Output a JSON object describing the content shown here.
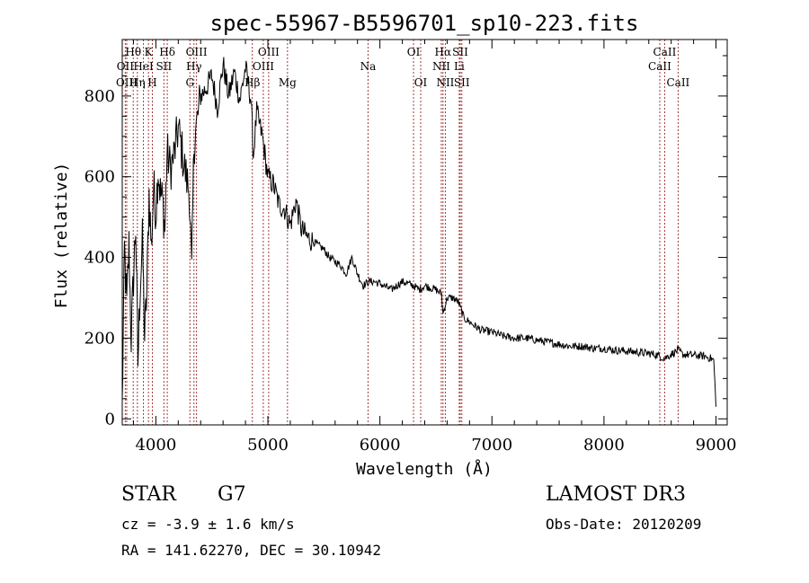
{
  "chart_data": {
    "type": "line",
    "title": "spec-55967-B5596701_sp10-223.fits",
    "xlabel": "Wavelength (Å)",
    "ylabel": "Flux (relative)",
    "xlim": [
      3700,
      9100
    ],
    "ylim": [
      -15,
      940
    ],
    "xticks": [
      4000,
      5000,
      6000,
      7000,
      8000,
      9000
    ],
    "yticks": [
      0,
      200,
      400,
      600,
      800
    ],
    "grid": false,
    "series": [
      {
        "values_x": [
          3700,
          3720,
          3740,
          3760,
          3780,
          3800,
          3820,
          3840,
          3860,
          3880,
          3900,
          3920,
          3940,
          3960,
          3980,
          4000,
          4020,
          4040,
          4060,
          4080,
          4100,
          4130,
          4160,
          4200,
          4240,
          4270,
          4300,
          4320,
          4340,
          4360,
          4400,
          4450,
          4500,
          4550,
          4600,
          4650,
          4700,
          4750,
          4800,
          4850,
          4870,
          4900,
          4950,
          5000,
          5050,
          5100,
          5150,
          5200,
          5250,
          5300,
          5350,
          5400,
          5450,
          5500,
          5550,
          5600,
          5650,
          5700,
          5750,
          5800,
          5850,
          5900,
          5950,
          6000,
          6100,
          6200,
          6300,
          6350,
          6400,
          6450,
          6500,
          6550,
          6563,
          6600,
          6650,
          6700,
          6750,
          6800,
          6850,
          6900,
          7000,
          7100,
          7200,
          7300,
          7400,
          7500,
          7600,
          7700,
          7800,
          7900,
          8000,
          8100,
          8200,
          8300,
          8400,
          8450,
          8500,
          8542,
          8600,
          8662,
          8700,
          8800,
          8900,
          8950,
          8980,
          9000
        ],
        "values_y": [
          30,
          420,
          280,
          430,
          200,
          350,
          480,
          140,
          330,
          440,
          200,
          320,
          560,
          420,
          580,
          510,
          620,
          560,
          540,
          470,
          660,
          620,
          650,
          720,
          650,
          600,
          560,
          360,
          680,
          720,
          800,
          820,
          850,
          770,
          880,
          800,
          860,
          790,
          870,
          790,
          650,
          760,
          700,
          600,
          580,
          530,
          520,
          480,
          540,
          470,
          450,
          440,
          430,
          420,
          400,
          390,
          380,
          360,
          400,
          360,
          330,
          340,
          340,
          335,
          320,
          340,
          330,
          320,
          330,
          325,
          320,
          310,
          260,
          300,
          300,
          290,
          250,
          240,
          230,
          220,
          215,
          205,
          200,
          200,
          195,
          190,
          185,
          180,
          180,
          175,
          175,
          170,
          168,
          165,
          162,
          160,
          155,
          150,
          160,
          170,
          160,
          158,
          155,
          150,
          145,
          30
        ],
        "noise_amplitude": 10
      }
    ],
    "lines": [
      {
        "label": "Hθ",
        "x": 3798,
        "row": 1
      },
      {
        "label": "OII",
        "x": 3727,
        "row": 2
      },
      {
        "label": "OIII",
        "x": 3740,
        "row": 3
      },
      {
        "label": "K",
        "x": 3934,
        "row": 1
      },
      {
        "label": "HeI",
        "x": 3889,
        "row": 2
      },
      {
        "label": "Hη",
        "x": 3835,
        "row": 3
      },
      {
        "label": "H",
        "x": 3969,
        "row": 3
      },
      {
        "label": "Hδ",
        "x": 4102,
        "row": 1
      },
      {
        "label": "SII",
        "x": 4072,
        "row": 2
      },
      {
        "label": "OIII",
        "x": 4363,
        "row": 1
      },
      {
        "label": "Hγ",
        "x": 4340,
        "row": 2
      },
      {
        "label": "G",
        "x": 4304,
        "row": 3
      },
      {
        "label": "Hβ",
        "x": 4861,
        "row": 3
      },
      {
        "label": "OIII",
        "x": 5007,
        "row": 1
      },
      {
        "label": "OIII",
        "x": 4959,
        "row": 2
      },
      {
        "label": "Mg",
        "x": 5175,
        "row": 3
      },
      {
        "label": "Na",
        "x": 5894,
        "row": 2
      },
      {
        "label": "OI",
        "x": 6300,
        "row": 1
      },
      {
        "label": "OI",
        "x": 6364,
        "row": 3
      },
      {
        "label": "Hα",
        "x": 6563,
        "row": 1
      },
      {
        "label": "NII",
        "x": 6548,
        "row": 2
      },
      {
        "label": "NII",
        "x": 6584,
        "row": 3
      },
      {
        "label": "SII",
        "x": 6717,
        "row": 1
      },
      {
        "label": "Li",
        "x": 6708,
        "row": 2
      },
      {
        "label": "SII",
        "x": 6731,
        "row": 3
      },
      {
        "label": "CaII",
        "x": 8542,
        "row": 1
      },
      {
        "label": "CaII",
        "x": 8498,
        "row": 2
      },
      {
        "label": "CaII",
        "x": 8662,
        "row": 3
      }
    ],
    "line_color": "#a33a3a"
  },
  "info": {
    "object_class": "STAR",
    "subclass": "G7",
    "survey": "LAMOST DR3",
    "cz": "cz = -3.9 ± 1.6 km/s",
    "obs_date": "Obs-Date: 20120209",
    "coords": "RA = 141.62270, DEC =  30.10942"
  }
}
